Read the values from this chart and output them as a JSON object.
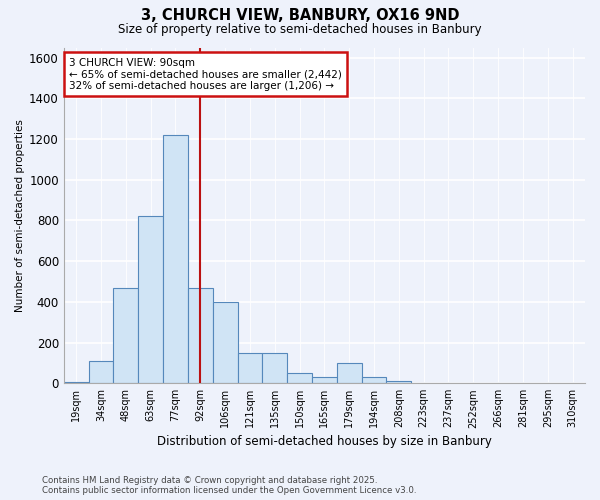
{
  "title": "3, CHURCH VIEW, BANBURY, OX16 9ND",
  "subtitle": "Size of property relative to semi-detached houses in Banbury",
  "xlabel": "Distribution of semi-detached houses by size in Banbury",
  "ylabel": "Number of semi-detached properties",
  "footer_line1": "Contains HM Land Registry data © Crown copyright and database right 2025.",
  "footer_line2": "Contains public sector information licensed under the Open Government Licence v3.0.",
  "annotation_line1": "3 CHURCH VIEW: 90sqm",
  "annotation_line2": "← 65% of semi-detached houses are smaller (2,442)",
  "annotation_line3": "32% of semi-detached houses are larger (1,206) →",
  "bar_color": "#d0e4f5",
  "bar_edge_color": "#5588bb",
  "highlight_color": "#bb1111",
  "background_color": "#eef2fb",
  "grid_color": "#ffffff",
  "bins": [
    "19sqm",
    "34sqm",
    "48sqm",
    "63sqm",
    "77sqm",
    "92sqm",
    "106sqm",
    "121sqm",
    "135sqm",
    "150sqm",
    "165sqm",
    "179sqm",
    "194sqm",
    "208sqm",
    "223sqm",
    "237sqm",
    "252sqm",
    "266sqm",
    "281sqm",
    "295sqm",
    "310sqm"
  ],
  "counts": [
    5,
    110,
    470,
    820,
    1220,
    470,
    400,
    150,
    150,
    50,
    30,
    100,
    30,
    10,
    0,
    0,
    0,
    0,
    0,
    0,
    0
  ],
  "property_bin_index": 5,
  "ylim": [
    0,
    1650
  ],
  "yticks": [
    0,
    200,
    400,
    600,
    800,
    1000,
    1200,
    1400,
    1600
  ]
}
